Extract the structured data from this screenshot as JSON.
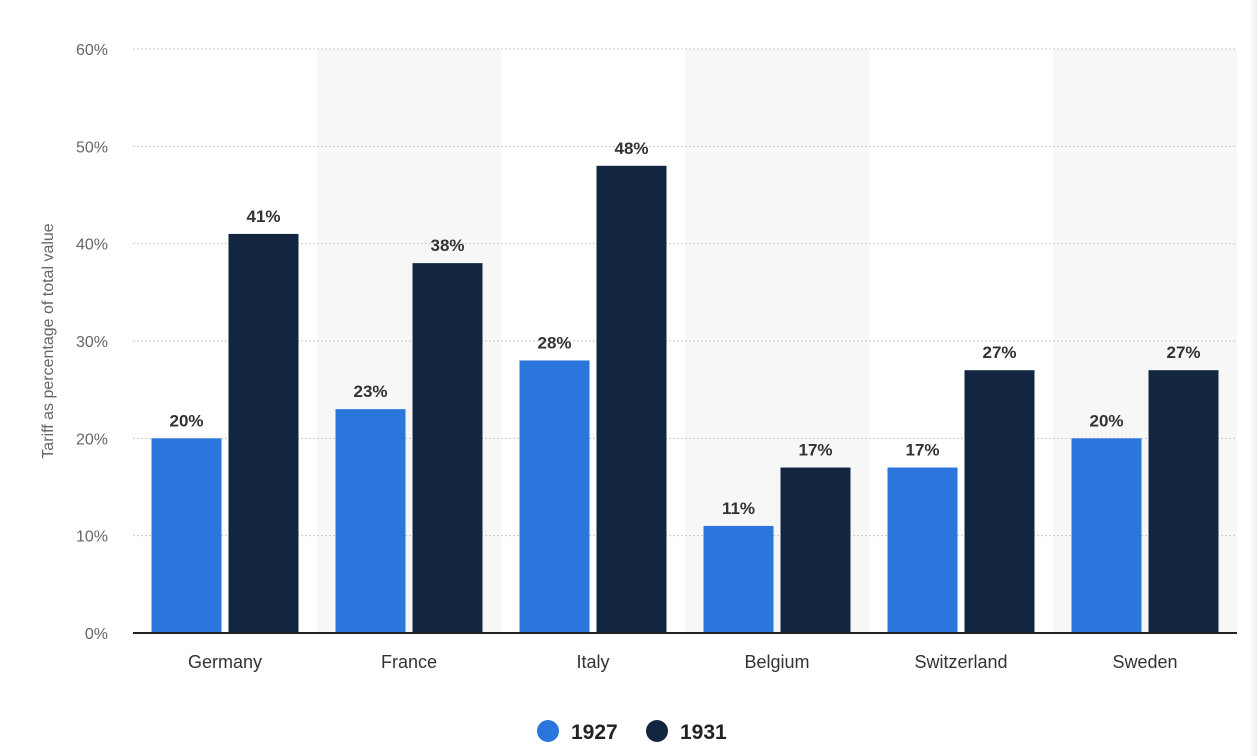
{
  "chart_data": {
    "type": "bar",
    "categories": [
      "Germany",
      "France",
      "Italy",
      "Belgium",
      "Switzerland",
      "Sweden"
    ],
    "series": [
      {
        "name": "1927",
        "values": [
          20,
          23,
          28,
          11,
          17,
          20
        ],
        "color": "#2a76dd"
      },
      {
        "name": "1931",
        "values": [
          41,
          38,
          48,
          17,
          27,
          27
        ],
        "color": "#12263f"
      }
    ],
    "ylabel": "Tariff as percentage of total value",
    "xlabel": "",
    "ylim": [
      0,
      60
    ],
    "yticks": [
      "0%",
      "10%",
      "20%",
      "30%",
      "40%",
      "50%",
      "60%"
    ],
    "value_suffix": "%",
    "grid": true,
    "legend_position": "bottom-center",
    "alternate_band_color": "#f7f7f8"
  }
}
